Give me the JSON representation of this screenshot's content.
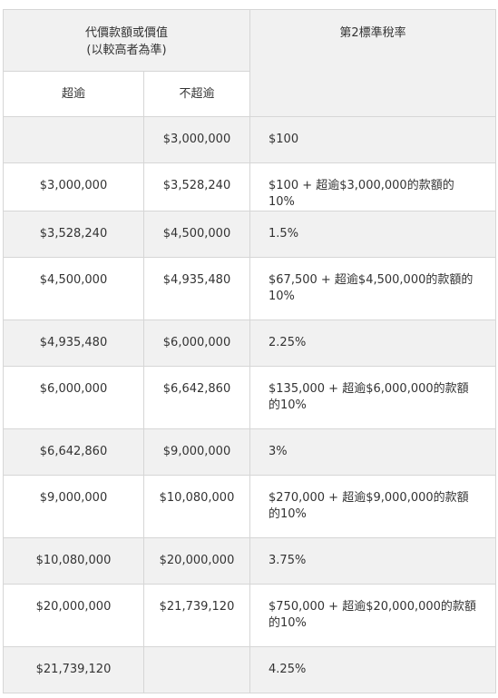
{
  "header": {
    "group_line1": "代價款額或價值",
    "group_line2": "(以較高者為準)",
    "rate": "第2標準稅率",
    "over": "超逾",
    "not_over": "不超逾"
  },
  "rows": [
    {
      "over": "",
      "not_over": "$3,000,000",
      "rate": "$100"
    },
    {
      "over": "$3,000,000",
      "not_over": "$3,528,240",
      "rate": "$100 + 超逾$3,000,000的款額的10%"
    },
    {
      "over": "$3,528,240",
      "not_over": "$4,500,000",
      "rate": "1.5%"
    },
    {
      "over": "$4,500,000",
      "not_over": "$4,935,480",
      "rate": "$67,500 + 超逾$4,500,000的款額的10%"
    },
    {
      "over": "$4,935,480",
      "not_over": "$6,000,000",
      "rate": "2.25%"
    },
    {
      "over": "$6,000,000",
      "not_over": "$6,642,860",
      "rate": "$135,000 + 超逾$6,000,000的款額的10%"
    },
    {
      "over": "$6,642,860",
      "not_over": "$9,000,000",
      "rate": "3%"
    },
    {
      "over": "$9,000,000",
      "not_over": "$10,080,000",
      "rate": "$270,000 + 超逾$9,000,000的款額的10%"
    },
    {
      "over": "$10,080,000",
      "not_over": "$20,000,000",
      "rate": "3.75%"
    },
    {
      "over": "$20,000,000",
      "not_over": "$21,739,120",
      "rate": "$750,000 + 超逾$20,000,000的款額的10%"
    },
    {
      "over": "$21,739,120",
      "not_over": "",
      "rate": "4.25%"
    }
  ]
}
